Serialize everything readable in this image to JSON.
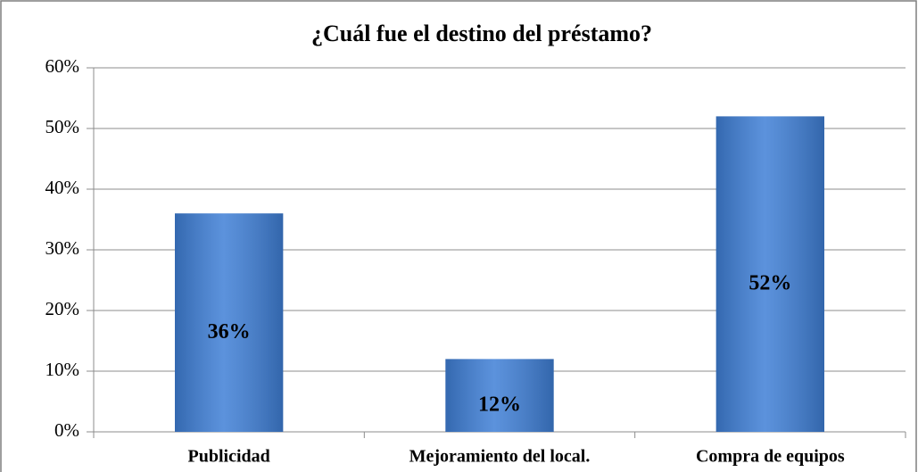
{
  "chart_data": {
    "type": "bar",
    "title": "¿Cuál fue el destino del préstamo?",
    "categories": [
      "Publicidad",
      "Mejoramiento del local.",
      "Compra de equipos"
    ],
    "values": [
      36,
      12,
      52
    ],
    "value_labels": [
      "36%",
      "12%",
      "52%"
    ],
    "color": "#3f7fd6",
    "ylim": [
      0,
      60
    ],
    "yticks": [
      {
        "value": 0,
        "label": "0%"
      },
      {
        "value": 10,
        "label": "10%"
      },
      {
        "value": 20,
        "label": "20%"
      },
      {
        "value": 30,
        "label": "30%"
      },
      {
        "value": 40,
        "label": "40%"
      },
      {
        "value": 50,
        "label": "50%"
      },
      {
        "value": 60,
        "label": "60%"
      }
    ],
    "grid": true
  }
}
